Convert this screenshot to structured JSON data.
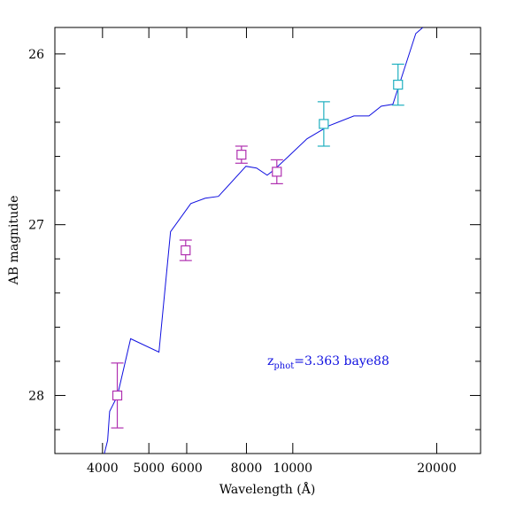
{
  "chart_data": {
    "type": "sed",
    "xlabel": "Wavelength (Å)",
    "ylabel": "AB magnitude",
    "xscale": "log",
    "xlim": [
      3180,
      24700
    ],
    "xticks": [
      4000,
      5000,
      6000,
      8000,
      10000,
      20000
    ],
    "ylim": [
      28.34,
      25.845
    ],
    "yticks": [
      26,
      27,
      28
    ],
    "yminorticks": [
      26.2,
      26.4,
      26.6,
      26.8,
      27.2,
      27.4,
      27.6,
      27.8,
      28.2
    ],
    "model": {
      "color": "#1010e0",
      "x": [
        4035,
        4100,
        4140,
        4295,
        4580,
        5250,
        5550,
        6120,
        6560,
        6990,
        7980,
        8400,
        8840,
        9140,
        9830,
        10710,
        11910,
        13420,
        14430,
        15310,
        16190,
        18080,
        18710
      ],
      "values": [
        28.34,
        28.264,
        28.093,
        28.005,
        27.668,
        27.746,
        27.041,
        26.876,
        26.845,
        26.834,
        26.658,
        26.668,
        26.71,
        26.679,
        26.596,
        26.497,
        26.42,
        26.363,
        26.363,
        26.306,
        26.295,
        25.881,
        25.845
      ]
    },
    "series": [
      {
        "color": "#b030b0",
        "x": [
          4295,
          5970,
          7810,
          9260
        ],
        "values": [
          28.0,
          27.15,
          26.59,
          26.69
        ],
        "errors": [
          0.19,
          0.06,
          0.05,
          0.07
        ]
      },
      {
        "color": "#20b0c0",
        "x": [
          11610,
          16600
        ],
        "values": [
          26.41,
          26.18
        ],
        "errors": [
          0.13,
          0.12
        ]
      }
    ],
    "annotation": {
      "color": "#1010e0",
      "text": "z",
      "sub": "phot",
      "rest": "=3.363 baye88"
    }
  }
}
